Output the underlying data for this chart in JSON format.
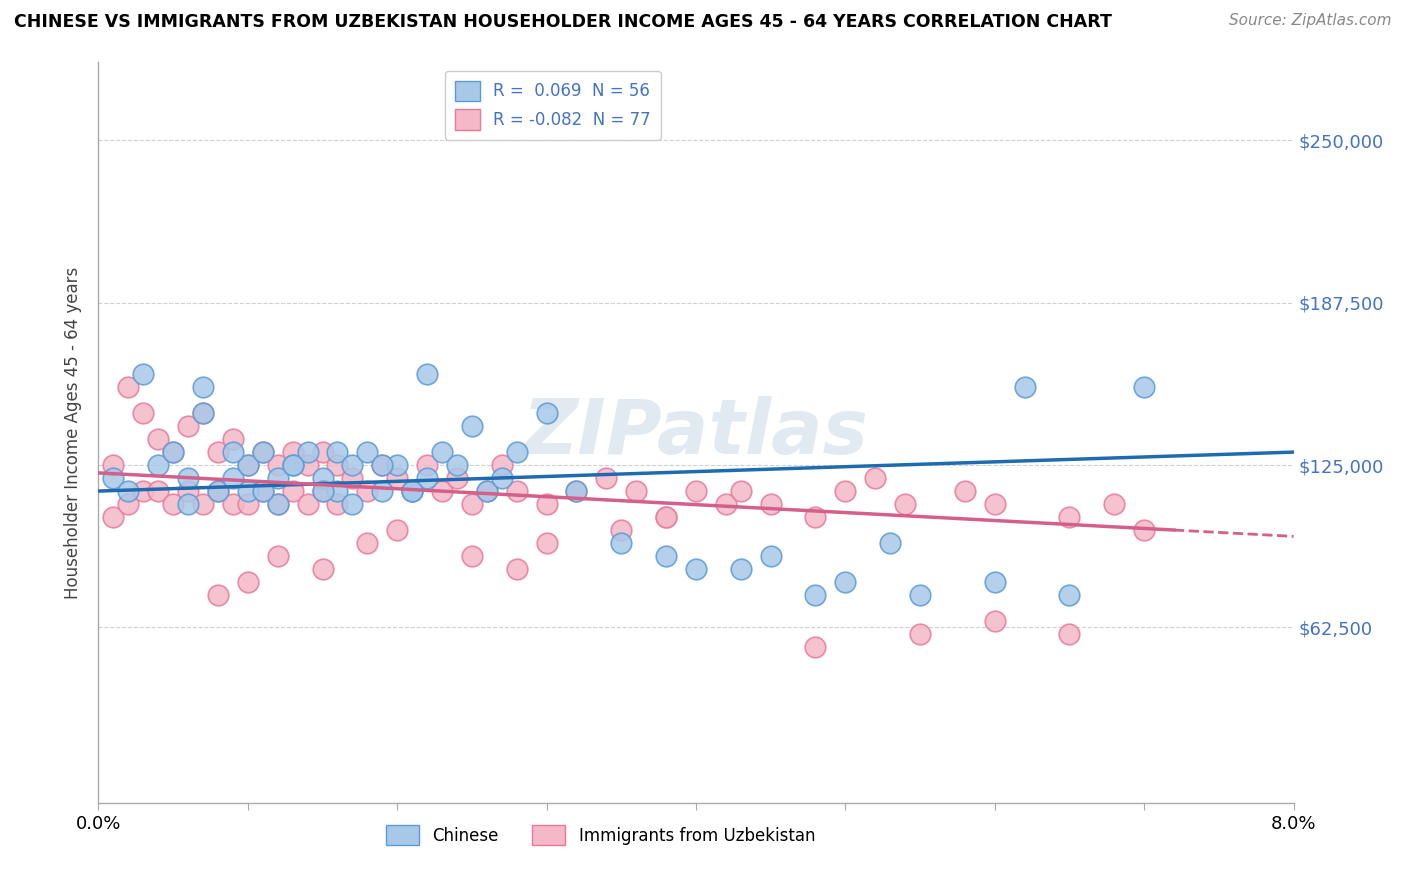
{
  "title": "CHINESE VS IMMIGRANTS FROM UZBEKISTAN HOUSEHOLDER INCOME AGES 45 - 64 YEARS CORRELATION CHART",
  "source": "Source: ZipAtlas.com",
  "ylabel": "Householder Income Ages 45 - 64 years",
  "xlim": [
    0.0,
    0.08
  ],
  "ylim": [
    -5000,
    280000
  ],
  "ytick_vals": [
    62500,
    125000,
    187500,
    250000
  ],
  "ytick_labels": [
    "$62,500",
    "$125,000",
    "$187,500",
    "$250,000"
  ],
  "chinese_color": "#a8c8e8",
  "chinese_edge_color": "#5b9bd5",
  "uzbek_color": "#f4b8c8",
  "uzbek_edge_color": "#e8799a",
  "chinese_line_color": "#1f6bb0",
  "uzbek_line_color": "#d45f8a",
  "watermark": "ZIPatlas",
  "chinese_R": 0.069,
  "chinese_N": 56,
  "uzbek_R": -0.082,
  "uzbek_N": 77,
  "chinese_scatter_x": [
    0.001,
    0.002,
    0.003,
    0.004,
    0.005,
    0.006,
    0.006,
    0.007,
    0.008,
    0.009,
    0.01,
    0.01,
    0.011,
    0.012,
    0.012,
    0.013,
    0.014,
    0.015,
    0.016,
    0.016,
    0.017,
    0.018,
    0.019,
    0.02,
    0.021,
    0.022,
    0.023,
    0.024,
    0.025,
    0.026,
    0.027,
    0.028,
    0.03,
    0.032,
    0.035,
    0.038,
    0.04,
    0.045,
    0.05,
    0.055,
    0.06,
    0.065,
    0.022,
    0.043,
    0.048,
    0.053,
    0.007,
    0.009,
    0.011,
    0.013,
    0.015,
    0.017,
    0.019,
    0.021,
    0.062,
    0.07
  ],
  "chinese_scatter_y": [
    120000,
    115000,
    160000,
    125000,
    130000,
    120000,
    110000,
    145000,
    115000,
    120000,
    125000,
    115000,
    130000,
    120000,
    110000,
    125000,
    130000,
    120000,
    130000,
    115000,
    125000,
    130000,
    115000,
    125000,
    115000,
    120000,
    130000,
    125000,
    140000,
    115000,
    120000,
    130000,
    145000,
    115000,
    95000,
    90000,
    85000,
    90000,
    80000,
    75000,
    80000,
    75000,
    160000,
    85000,
    75000,
    95000,
    155000,
    130000,
    115000,
    125000,
    115000,
    110000,
    125000,
    115000,
    155000,
    155000
  ],
  "uzbek_scatter_x": [
    0.001,
    0.001,
    0.002,
    0.002,
    0.003,
    0.003,
    0.004,
    0.004,
    0.005,
    0.005,
    0.006,
    0.006,
    0.007,
    0.007,
    0.008,
    0.008,
    0.009,
    0.009,
    0.01,
    0.01,
    0.011,
    0.011,
    0.012,
    0.012,
    0.013,
    0.013,
    0.014,
    0.014,
    0.015,
    0.015,
    0.016,
    0.016,
    0.017,
    0.018,
    0.019,
    0.02,
    0.021,
    0.022,
    0.023,
    0.024,
    0.025,
    0.026,
    0.027,
    0.028,
    0.03,
    0.032,
    0.034,
    0.036,
    0.038,
    0.04,
    0.042,
    0.043,
    0.045,
    0.048,
    0.05,
    0.052,
    0.054,
    0.058,
    0.06,
    0.065,
    0.068,
    0.07,
    0.048,
    0.055,
    0.06,
    0.065,
    0.038,
    0.035,
    0.03,
    0.028,
    0.025,
    0.02,
    0.018,
    0.015,
    0.012,
    0.01,
    0.008
  ],
  "uzbek_scatter_y": [
    125000,
    105000,
    155000,
    110000,
    145000,
    115000,
    135000,
    115000,
    130000,
    110000,
    140000,
    115000,
    145000,
    110000,
    130000,
    115000,
    135000,
    110000,
    125000,
    110000,
    130000,
    115000,
    125000,
    110000,
    130000,
    115000,
    125000,
    110000,
    130000,
    115000,
    125000,
    110000,
    120000,
    115000,
    125000,
    120000,
    115000,
    125000,
    115000,
    120000,
    110000,
    115000,
    125000,
    115000,
    110000,
    115000,
    120000,
    115000,
    105000,
    115000,
    110000,
    115000,
    110000,
    105000,
    115000,
    120000,
    110000,
    115000,
    110000,
    105000,
    110000,
    100000,
    55000,
    60000,
    65000,
    60000,
    105000,
    100000,
    95000,
    85000,
    90000,
    100000,
    95000,
    85000,
    90000,
    80000,
    75000
  ]
}
